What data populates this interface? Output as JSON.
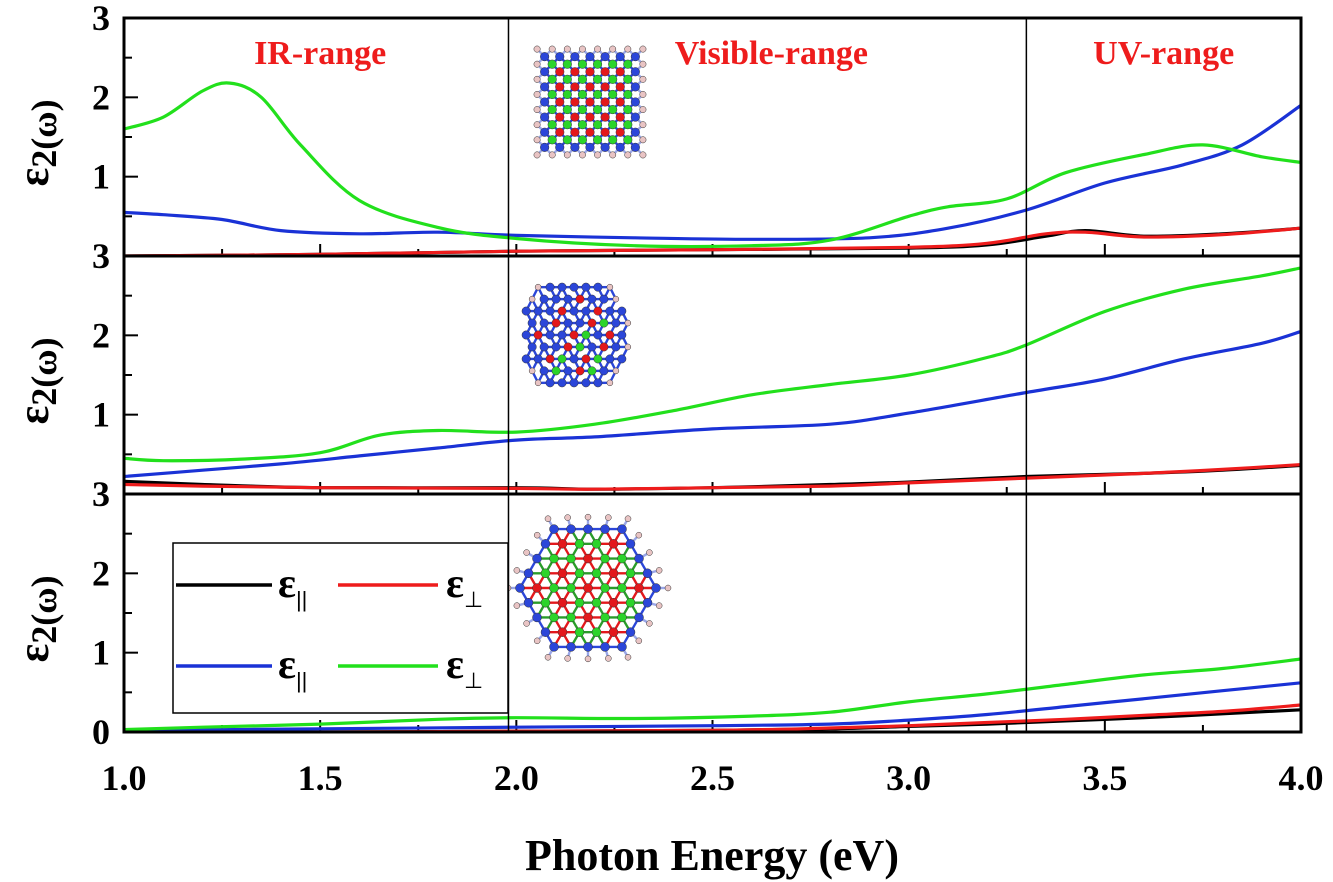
{
  "chart_data": {
    "type": "line",
    "xlabel": "Photon Energy (eV)",
    "xlim": [
      1.0,
      4.0
    ],
    "xticks": [
      "1.0",
      "1.5",
      "2.0",
      "2.5",
      "3.0",
      "3.5",
      "4.0"
    ],
    "ylabel_main": "ε",
    "ylabel_sub": "2(ω)",
    "region_boundaries_ev": [
      1.98,
      3.3
    ],
    "region_labels": [
      {
        "text": "IR-range",
        "x": 1.5
      },
      {
        "text": "Visible-range",
        "x": 2.65
      },
      {
        "text": "UV-range",
        "x": 3.65
      }
    ],
    "legend": {
      "placement": "lower-left",
      "entries": [
        {
          "main": "ε",
          "sub": "||",
          "color": "#000000"
        },
        {
          "main": "ε",
          "sub": "⊥",
          "color": "#ee1c1c"
        },
        {
          "main": "ε",
          "sub": "||",
          "color": "#1a32d6"
        },
        {
          "main": "ε",
          "sub": "⊥",
          "color": "#22e01c"
        }
      ]
    },
    "panels": [
      {
        "ylim": [
          0,
          3
        ],
        "yticks": [
          "3",
          "2",
          "1"
        ],
        "series": [
          {
            "color": "#000000",
            "x": [
              1.0,
              1.5,
              2.0,
              2.5,
              3.0,
              3.2,
              3.35,
              3.45,
              3.6,
              3.8,
              4.0
            ],
            "y": [
              0.0,
              0.02,
              0.06,
              0.08,
              0.1,
              0.14,
              0.25,
              0.32,
              0.25,
              0.28,
              0.35
            ]
          },
          {
            "color": "#ee1c1c",
            "x": [
              1.0,
              1.5,
              2.0,
              2.5,
              3.0,
              3.2,
              3.35,
              3.45,
              3.6,
              3.8,
              4.0
            ],
            "y": [
              0.0,
              0.02,
              0.06,
              0.08,
              0.11,
              0.16,
              0.28,
              0.3,
              0.24,
              0.27,
              0.35
            ]
          },
          {
            "color": "#1a32d6",
            "x": [
              1.0,
              1.1,
              1.25,
              1.4,
              1.6,
              1.8,
              2.0,
              2.3,
              2.6,
              2.9,
              3.1,
              3.3,
              3.5,
              3.7,
              3.85,
              4.0
            ],
            "y": [
              0.55,
              0.52,
              0.46,
              0.32,
              0.28,
              0.3,
              0.26,
              0.23,
              0.21,
              0.23,
              0.35,
              0.58,
              0.92,
              1.15,
              1.4,
              1.9
            ]
          },
          {
            "color": "#22e01c",
            "x": [
              1.0,
              1.1,
              1.2,
              1.27,
              1.35,
              1.45,
              1.6,
              1.8,
              2.0,
              2.3,
              2.6,
              2.8,
              3.0,
              3.1,
              3.25,
              3.4,
              3.6,
              3.75,
              3.9,
              4.0
            ],
            "y": [
              1.6,
              1.75,
              2.08,
              2.18,
              2.0,
              1.4,
              0.7,
              0.36,
              0.22,
              0.13,
              0.13,
              0.2,
              0.5,
              0.62,
              0.72,
              1.05,
              1.28,
              1.4,
              1.25,
              1.18
            ]
          }
        ]
      },
      {
        "ylim": [
          0,
          3
        ],
        "yticks": [
          "3",
          "2",
          "1"
        ],
        "series": [
          {
            "color": "#000000",
            "x": [
              1.0,
              1.2,
              1.5,
              2.0,
              2.2,
              2.5,
              2.8,
              3.0,
              3.3,
              3.6,
              3.8,
              4.0
            ],
            "y": [
              0.16,
              0.12,
              0.08,
              0.08,
              0.06,
              0.08,
              0.12,
              0.15,
              0.22,
              0.26,
              0.3,
              0.36
            ]
          },
          {
            "color": "#ee1c1c",
            "x": [
              1.0,
              1.2,
              1.5,
              2.0,
              2.2,
              2.5,
              2.8,
              3.0,
              3.3,
              3.6,
              3.8,
              4.0
            ],
            "y": [
              0.12,
              0.1,
              0.08,
              0.07,
              0.06,
              0.08,
              0.1,
              0.14,
              0.2,
              0.26,
              0.31,
              0.37
            ]
          },
          {
            "color": "#1a32d6",
            "x": [
              1.0,
              1.2,
              1.4,
              1.6,
              1.8,
              2.0,
              2.2,
              2.5,
              2.8,
              3.0,
              3.3,
              3.5,
              3.7,
              3.9,
              4.0
            ],
            "y": [
              0.22,
              0.3,
              0.38,
              0.48,
              0.58,
              0.68,
              0.72,
              0.82,
              0.88,
              1.02,
              1.28,
              1.45,
              1.7,
              1.9,
              2.05
            ]
          },
          {
            "color": "#22e01c",
            "x": [
              1.0,
              1.1,
              1.3,
              1.5,
              1.65,
              1.8,
              2.0,
              2.2,
              2.4,
              2.6,
              2.8,
              3.0,
              3.2,
              3.3,
              3.5,
              3.7,
              3.9,
              4.0
            ],
            "y": [
              0.45,
              0.42,
              0.44,
              0.52,
              0.74,
              0.8,
              0.78,
              0.88,
              1.05,
              1.25,
              1.38,
              1.5,
              1.72,
              1.88,
              2.3,
              2.58,
              2.75,
              2.85
            ]
          }
        ]
      },
      {
        "ylim": [
          0,
          3
        ],
        "yticks": [
          "3",
          "2",
          "1",
          "0"
        ],
        "series": [
          {
            "color": "#000000",
            "x": [
              1.0,
              1.5,
              2.0,
              2.5,
              2.8,
              3.0,
              3.2,
              3.4,
              3.6,
              3.8,
              4.0
            ],
            "y": [
              0.0,
              0.0,
              0.01,
              0.02,
              0.04,
              0.07,
              0.1,
              0.14,
              0.18,
              0.23,
              0.28
            ]
          },
          {
            "color": "#ee1c1c",
            "x": [
              1.0,
              1.5,
              2.0,
              2.5,
              2.8,
              3.0,
              3.2,
              3.4,
              3.6,
              3.8,
              4.0
            ],
            "y": [
              0.0,
              0.0,
              0.01,
              0.02,
              0.05,
              0.08,
              0.12,
              0.16,
              0.21,
              0.26,
              0.34
            ]
          },
          {
            "color": "#1a32d6",
            "x": [
              1.0,
              1.5,
              2.0,
              2.5,
              2.8,
              3.0,
              3.2,
              3.4,
              3.6,
              3.8,
              4.0
            ],
            "y": [
              0.02,
              0.04,
              0.06,
              0.08,
              0.1,
              0.15,
              0.22,
              0.32,
              0.42,
              0.52,
              0.62
            ]
          },
          {
            "color": "#22e01c",
            "x": [
              1.0,
              1.2,
              1.5,
              1.8,
              2.0,
              2.3,
              2.6,
              2.8,
              3.0,
              3.2,
              3.4,
              3.6,
              3.8,
              4.0
            ],
            "y": [
              0.03,
              0.06,
              0.1,
              0.16,
              0.18,
              0.17,
              0.2,
              0.25,
              0.38,
              0.48,
              0.6,
              0.72,
              0.8,
              0.92
            ]
          }
        ]
      }
    ]
  }
}
